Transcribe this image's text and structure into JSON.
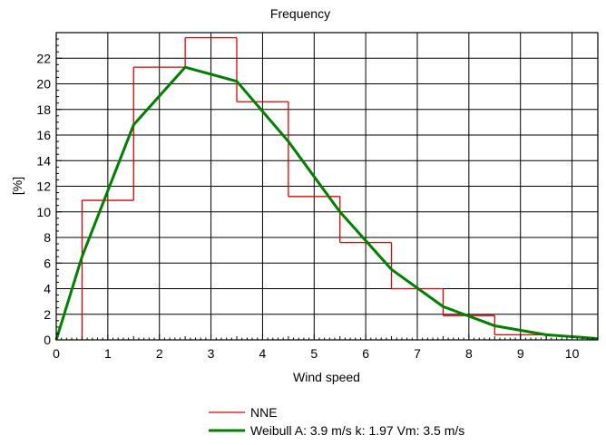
{
  "chart_data": {
    "type": "step-histogram-with-line",
    "title": "Frequency",
    "xlabel": "Wind speed",
    "ylabel": "[%]",
    "xlim": [
      0,
      10.5
    ],
    "ylim": [
      0,
      24
    ],
    "xticks": [
      0,
      1,
      2,
      3,
      4,
      5,
      6,
      7,
      8,
      9,
      10
    ],
    "yticks": [
      0,
      2,
      4,
      6,
      8,
      10,
      12,
      14,
      16,
      18,
      20,
      22
    ],
    "grid": true,
    "legend_position": "bottom-center",
    "series": [
      {
        "name": "NNE",
        "type": "step",
        "color": "#e00000",
        "bins": [
          {
            "x0": 0.5,
            "x1": 1.5,
            "value": 10.9
          },
          {
            "x0": 1.5,
            "x1": 2.5,
            "value": 21.3
          },
          {
            "x0": 2.5,
            "x1": 3.5,
            "value": 23.6
          },
          {
            "x0": 3.5,
            "x1": 4.5,
            "value": 18.6
          },
          {
            "x0": 4.5,
            "x1": 5.5,
            "value": 11.2
          },
          {
            "x0": 5.5,
            "x1": 6.5,
            "value": 7.6
          },
          {
            "x0": 6.5,
            "x1": 7.5,
            "value": 4.0
          },
          {
            "x0": 7.5,
            "x1": 8.5,
            "value": 1.9
          },
          {
            "x0": 8.5,
            "x1": 9.5,
            "value": 0.4
          }
        ]
      },
      {
        "name": "Weibull A: 3.9 m/s k: 1.97 Vm: 3.5 m/s",
        "type": "line",
        "color": "#008000",
        "x": [
          0,
          0.5,
          1.5,
          2.5,
          3.5,
          4.5,
          5.5,
          6.5,
          7.5,
          8.5,
          9.5,
          10.5
        ],
        "y": [
          0,
          6.5,
          16.8,
          21.3,
          20.2,
          15.5,
          10.0,
          5.5,
          2.6,
          1.1,
          0.4,
          0.1
        ]
      }
    ]
  }
}
